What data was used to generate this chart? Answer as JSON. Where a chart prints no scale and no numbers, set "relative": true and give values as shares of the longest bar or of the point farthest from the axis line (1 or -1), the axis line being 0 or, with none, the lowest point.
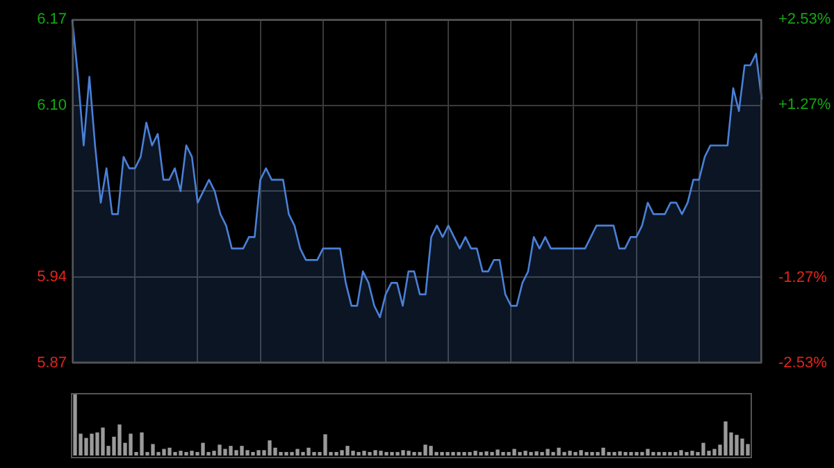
{
  "chart_data": [
    {
      "type": "area",
      "color": "#4a80d8",
      "marker": "none",
      "grid": true,
      "legend": false,
      "categories": [
        null,
        null,
        null,
        null,
        null,
        null,
        null,
        null,
        null,
        null,
        null,
        null,
        null,
        null,
        null,
        null,
        null,
        null,
        null,
        null,
        null,
        null,
        null,
        null,
        null,
        null,
        null,
        null,
        null,
        null,
        null,
        null,
        null,
        null,
        null,
        null,
        null,
        null,
        null,
        null,
        null,
        null,
        null,
        null,
        null,
        null,
        null,
        null,
        null,
        null,
        null,
        null,
        null,
        null,
        null,
        null,
        null,
        null,
        null,
        null,
        null,
        null,
        null,
        null,
        null,
        null,
        null,
        null,
        null,
        null,
        null,
        null,
        null,
        null,
        null,
        null,
        null,
        null,
        null,
        null,
        null,
        null,
        null,
        null,
        null,
        null,
        null,
        null,
        null,
        null,
        null,
        null,
        null,
        null,
        null,
        null,
        null,
        null,
        null,
        null,
        null,
        null,
        null,
        null,
        null,
        null,
        null,
        null,
        null,
        null,
        null,
        null,
        null,
        null,
        null,
        null,
        null,
        null,
        null,
        null,
        null,
        null
      ],
      "values": [
        6.17,
        6.12,
        6.06,
        6.12,
        6.06,
        6.01,
        6.04,
        6.0,
        6.0,
        6.05,
        6.04,
        6.04,
        6.05,
        6.08,
        6.06,
        6.07,
        6.03,
        6.03,
        6.04,
        6.02,
        6.06,
        6.05,
        6.01,
        6.02,
        6.03,
        6.02,
        6.0,
        5.99,
        5.97,
        5.97,
        5.97,
        5.98,
        5.98,
        6.03,
        6.04,
        6.03,
        6.03,
        6.03,
        6.0,
        5.99,
        5.97,
        5.96,
        5.96,
        5.96,
        5.97,
        5.97,
        5.97,
        5.97,
        5.94,
        5.92,
        5.92,
        5.95,
        5.94,
        5.92,
        5.91,
        5.93,
        5.94,
        5.94,
        5.92,
        5.95,
        5.95,
        5.93,
        5.93,
        5.98,
        5.99,
        5.98,
        5.99,
        5.98,
        5.97,
        5.98,
        5.97,
        5.97,
        5.95,
        5.95,
        5.96,
        5.96,
        5.93,
        5.92,
        5.92,
        5.94,
        5.95,
        5.98,
        5.97,
        5.98,
        5.97,
        5.97,
        5.97,
        5.97,
        5.97,
        5.97,
        5.97,
        5.98,
        5.99,
        5.99,
        5.99,
        5.99,
        5.97,
        5.97,
        5.98,
        5.98,
        5.99,
        6.01,
        6.0,
        6.0,
        6.0,
        6.01,
        6.01,
        6.0,
        6.01,
        6.03,
        6.03,
        6.05,
        6.06,
        6.06,
        6.06,
        6.06,
        6.11,
        6.09,
        6.13,
        6.13,
        6.14,
        6.1
      ],
      "ylim": [
        5.87,
        6.17
      ],
      "yticks": [
        {
          "value": 5.87,
          "label": "5.87"
        },
        {
          "value": 5.945,
          "label": "5.94"
        },
        {
          "value": 6.02,
          "label": null
        },
        {
          "value": 6.095,
          "label": "6.10"
        },
        {
          "value": 6.17,
          "label": "6.17"
        }
      ],
      "y2lim": [
        -2.53,
        2.53
      ],
      "y2ticks": [
        {
          "value": -2.53,
          "label": "-2.53%"
        },
        {
          "value": -1.27,
          "label": "-1.27%"
        },
        {
          "value": 0,
          "label": null
        },
        {
          "value": 1.27,
          "label": "+1.27%"
        },
        {
          "value": 2.53,
          "label": "+2.53%"
        }
      ]
    },
    {
      "type": "bar",
      "relative": true,
      "color": "#9a9a9a",
      "legend": false,
      "categories": [
        null,
        null,
        null,
        null,
        null,
        null,
        null,
        null,
        null,
        null,
        null,
        null,
        null,
        null,
        null,
        null,
        null,
        null,
        null,
        null,
        null,
        null,
        null,
        null,
        null,
        null,
        null,
        null,
        null,
        null,
        null,
        null,
        null,
        null,
        null,
        null,
        null,
        null,
        null,
        null,
        null,
        null,
        null,
        null,
        null,
        null,
        null,
        null,
        null,
        null,
        null,
        null,
        null,
        null,
        null,
        null,
        null,
        null,
        null,
        null,
        null,
        null,
        null,
        null,
        null,
        null,
        null,
        null,
        null,
        null,
        null,
        null,
        null,
        null,
        null,
        null,
        null,
        null,
        null,
        null,
        null,
        null,
        null,
        null,
        null,
        null,
        null,
        null,
        null,
        null,
        null,
        null,
        null,
        null,
        null,
        null,
        null,
        null,
        null,
        null,
        null,
        null,
        null,
        null,
        null,
        null,
        null,
        null,
        null,
        null,
        null,
        null,
        null,
        null,
        null,
        null,
        null,
        null,
        null,
        null,
        null,
        null
      ],
      "values": [
        1.0,
        0.35,
        0.28,
        0.35,
        0.37,
        0.45,
        0.15,
        0.3,
        0.5,
        0.2,
        0.35,
        0.05,
        0.37,
        0.05,
        0.18,
        0.05,
        0.1,
        0.12,
        0.05,
        0.07,
        0.05,
        0.07,
        0.05,
        0.2,
        0.05,
        0.07,
        0.17,
        0.1,
        0.15,
        0.08,
        0.15,
        0.08,
        0.05,
        0.08,
        0.08,
        0.24,
        0.12,
        0.05,
        0.05,
        0.05,
        0.1,
        0.05,
        0.12,
        0.05,
        0.05,
        0.34,
        0.05,
        0.05,
        0.08,
        0.15,
        0.07,
        0.05,
        0.07,
        0.05,
        0.08,
        0.07,
        0.05,
        0.05,
        0.05,
        0.08,
        0.07,
        0.05,
        0.05,
        0.17,
        0.15,
        0.05,
        0.05,
        0.05,
        0.05,
        0.05,
        0.05,
        0.05,
        0.07,
        0.05,
        0.06,
        0.05,
        0.09,
        0.05,
        0.05,
        0.1,
        0.05,
        0.07,
        0.05,
        0.06,
        0.05,
        0.1,
        0.05,
        0.12,
        0.05,
        0.07,
        0.05,
        0.08,
        0.05,
        0.05,
        0.05,
        0.12,
        0.05,
        0.05,
        0.06,
        0.05,
        0.05,
        0.05,
        0.05,
        0.1,
        0.05,
        0.05,
        0.05,
        0.05,
        0.05,
        0.08,
        0.05,
        0.07,
        0.05,
        0.2,
        0.07,
        0.1,
        0.17,
        0.55,
        0.37,
        0.33,
        0.27,
        0.18
      ]
    }
  ]
}
